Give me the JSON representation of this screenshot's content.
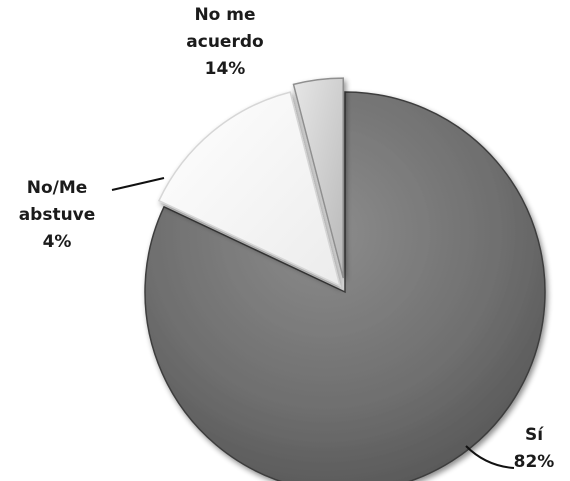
{
  "chart_data": {
    "type": "pie",
    "slices": [
      {
        "label_lines": [
          "Sí"
        ],
        "value": 82,
        "value_text": "82%",
        "color": "#6a6a6a"
      },
      {
        "label_lines": [
          "No me",
          "acuerdo"
        ],
        "value": 14,
        "value_text": "14%",
        "color": "#f7f7f7"
      },
      {
        "label_lines": [
          "No/Me",
          "abstuve"
        ],
        "value": 4,
        "value_text": "4%",
        "color": "#cfcfcf"
      }
    ],
    "legend": "none",
    "exploded": true
  }
}
